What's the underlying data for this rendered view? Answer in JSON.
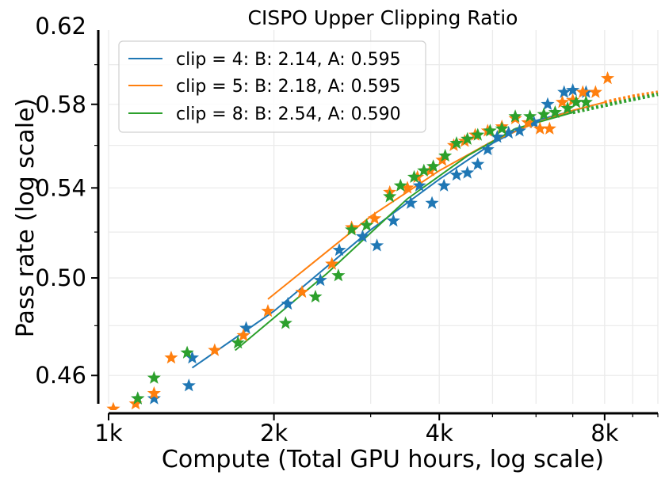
{
  "chart_data": {
    "type": "scatter",
    "title": "CISPO Upper Clipping Ratio",
    "xlabel": "Compute (Total GPU hours, log scale)",
    "ylabel": "Pass rate (log scale)",
    "xscale": "log",
    "yscale": "log",
    "xlim": [
      1000,
      10000
    ],
    "ylim": [
      0.449,
      0.618
    ],
    "xticks": [
      1000,
      2000,
      4000,
      8000
    ],
    "xtick_labels": [
      "1k",
      "2k",
      "4k",
      "8k"
    ],
    "yticks": [
      0.46,
      0.5,
      0.54,
      0.58,
      0.62
    ],
    "ytick_labels": [
      "0.46",
      "0.50",
      "0.54",
      "0.58",
      "0.62"
    ],
    "grid": true,
    "legend_position": "top-left",
    "series": [
      {
        "name": "clip = 4: B: 2.14, A: 0.595",
        "color": "#1f77b4",
        "points": [
          [
            1130,
            0.451
          ],
          [
            1420,
            0.467
          ],
          [
            1780,
            0.479
          ],
          [
            2120,
            0.489
          ],
          [
            2430,
            0.499
          ],
          [
            2630,
            0.512
          ],
          [
            2900,
            0.518
          ],
          [
            3080,
            0.514
          ],
          [
            3300,
            0.525
          ],
          [
            3550,
            0.533
          ],
          [
            3680,
            0.541
          ],
          [
            3880,
            0.533
          ],
          [
            4080,
            0.541
          ],
          [
            4300,
            0.546
          ],
          [
            4500,
            0.547
          ],
          [
            4700,
            0.551
          ],
          [
            4900,
            0.558
          ],
          [
            5100,
            0.564
          ],
          [
            5350,
            0.566
          ],
          [
            5600,
            0.567
          ],
          [
            5950,
            0.571
          ],
          [
            6300,
            0.58
          ],
          [
            6750,
            0.586
          ],
          [
            7000,
            0.587
          ],
          [
            7400,
            0.586
          ],
          [
            1210,
            0.451
          ],
          [
            1400,
            0.456
          ]
        ],
        "fit": [
          [
            1420,
            0.463
          ],
          [
            2000,
            0.486
          ],
          [
            3000,
            0.521
          ],
          [
            4000,
            0.544
          ],
          [
            5000,
            0.561
          ],
          [
            6000,
            0.572
          ],
          [
            7500,
            0.579
          ]
        ],
        "fit_extrapolated": []
      },
      {
        "name": "clip = 5: B: 2.18, A: 0.595",
        "color": "#ff7f0e",
        "points": [
          [
            1020,
            0.447
          ],
          [
            1120,
            0.449
          ],
          [
            1210,
            0.453
          ],
          [
            1300,
            0.467
          ],
          [
            1560,
            0.47
          ],
          [
            1760,
            0.476
          ],
          [
            1950,
            0.486
          ],
          [
            2250,
            0.494
          ],
          [
            2550,
            0.506
          ],
          [
            2770,
            0.522
          ],
          [
            3050,
            0.526
          ],
          [
            3250,
            0.538
          ],
          [
            3500,
            0.54
          ],
          [
            3650,
            0.545
          ],
          [
            3850,
            0.548
          ],
          [
            4050,
            0.553
          ],
          [
            4250,
            0.56
          ],
          [
            4450,
            0.562
          ],
          [
            4650,
            0.565
          ],
          [
            4900,
            0.567
          ],
          [
            5200,
            0.569
          ],
          [
            5500,
            0.573
          ],
          [
            5800,
            0.571
          ],
          [
            6100,
            0.568
          ],
          [
            6350,
            0.568
          ],
          [
            6700,
            0.581
          ],
          [
            7000,
            0.582
          ],
          [
            7300,
            0.586
          ],
          [
            7700,
            0.586
          ],
          [
            8100,
            0.593
          ]
        ],
        "fit": [
          [
            1950,
            0.491
          ],
          [
            3000,
            0.527
          ],
          [
            4000,
            0.548
          ],
          [
            5000,
            0.562
          ],
          [
            6000,
            0.571
          ],
          [
            7000,
            0.577
          ],
          [
            8000,
            0.581
          ]
        ],
        "fit_extrapolated": [
          [
            8000,
            0.581
          ],
          [
            9000,
            0.584
          ],
          [
            10000,
            0.586
          ]
        ]
      },
      {
        "name": "clip = 8: B: 2.54, A: 0.590",
        "color": "#2ca02c",
        "points": [
          [
            1130,
            0.451
          ],
          [
            1210,
            0.459
          ],
          [
            1390,
            0.469
          ],
          [
            1720,
            0.473
          ],
          [
            2100,
            0.481
          ],
          [
            2380,
            0.492
          ],
          [
            2620,
            0.501
          ],
          [
            2770,
            0.521
          ],
          [
            2950,
            0.523
          ],
          [
            3250,
            0.536
          ],
          [
            3400,
            0.541
          ],
          [
            3600,
            0.545
          ],
          [
            3750,
            0.548
          ],
          [
            3900,
            0.55
          ],
          [
            4100,
            0.555
          ],
          [
            4300,
            0.561
          ],
          [
            4500,
            0.563
          ],
          [
            4700,
            0.565
          ],
          [
            4950,
            0.567
          ],
          [
            5200,
            0.568
          ],
          [
            5500,
            0.574
          ],
          [
            5850,
            0.574
          ],
          [
            6200,
            0.575
          ],
          [
            6500,
            0.576
          ],
          [
            6850,
            0.578
          ],
          [
            7100,
            0.581
          ],
          [
            7400,
            0.581
          ]
        ],
        "fit": [
          [
            1700,
            0.47
          ],
          [
            2500,
            0.502
          ],
          [
            3500,
            0.535
          ],
          [
            4500,
            0.555
          ],
          [
            5500,
            0.568
          ],
          [
            7000,
            0.576
          ]
        ],
        "fit_extrapolated": [
          [
            7000,
            0.576
          ],
          [
            8500,
            0.581
          ],
          [
            10000,
            0.585
          ]
        ]
      }
    ]
  }
}
